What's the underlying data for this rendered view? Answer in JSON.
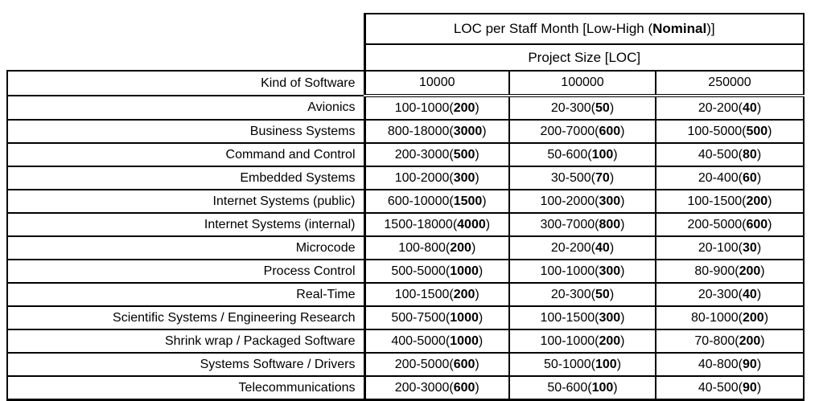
{
  "page": {
    "background_color": "#ffffff",
    "text_color": "#000000",
    "border_color": "#000000"
  },
  "table": {
    "title": {
      "prefix": "LOC per Staff Month [Low-High (",
      "bold": "Nominal",
      "suffix": ")]"
    },
    "subheader": "Project Size [LOC]",
    "corner_label": "Kind of Software",
    "size_columns": [
      "10000",
      "100000",
      "250000"
    ],
    "rows": [
      {
        "label": "Avionics",
        "cells": [
          {
            "range": "100-1000",
            "nominal": "200"
          },
          {
            "range": "20-300",
            "nominal": "50"
          },
          {
            "range": "20-200",
            "nominal": "40"
          }
        ]
      },
      {
        "label": "Business Systems",
        "cells": [
          {
            "range": "800-18000",
            "nominal": "3000"
          },
          {
            "range": "200-7000",
            "nominal": "600"
          },
          {
            "range": "100-5000",
            "nominal": "500"
          }
        ]
      },
      {
        "label": "Command and Control",
        "cells": [
          {
            "range": "200-3000",
            "nominal": "500"
          },
          {
            "range": "50-600",
            "nominal": "100"
          },
          {
            "range": "40-500",
            "nominal": "80"
          }
        ]
      },
      {
        "label": "Embedded Systems",
        "cells": [
          {
            "range": "100-2000",
            "nominal": "300"
          },
          {
            "range": "30-500",
            "nominal": "70"
          },
          {
            "range": "20-400",
            "nominal": "60"
          }
        ]
      },
      {
        "label": "Internet Systems (public)",
        "cells": [
          {
            "range": "600-10000",
            "nominal": "1500"
          },
          {
            "range": "100-2000",
            "nominal": "300"
          },
          {
            "range": "100-1500",
            "nominal": "200"
          }
        ]
      },
      {
        "label": "Internet Systems (internal)",
        "cells": [
          {
            "range": "1500-18000",
            "nominal": "4000"
          },
          {
            "range": "300-7000",
            "nominal": "800"
          },
          {
            "range": "200-5000",
            "nominal": "600"
          }
        ]
      },
      {
        "label": "Microcode",
        "cells": [
          {
            "range": "100-800",
            "nominal": "200"
          },
          {
            "range": "20-200",
            "nominal": "40"
          },
          {
            "range": "20-100",
            "nominal": "30"
          }
        ]
      },
      {
        "label": "Process Control",
        "cells": [
          {
            "range": "500-5000",
            "nominal": "1000"
          },
          {
            "range": "100-1000",
            "nominal": "300"
          },
          {
            "range": "80-900",
            "nominal": "200"
          }
        ]
      },
      {
        "label": "Real-Time",
        "cells": [
          {
            "range": "100-1500",
            "nominal": "200"
          },
          {
            "range": "20-300",
            "nominal": "50"
          },
          {
            "range": "20-300",
            "nominal": "40"
          }
        ]
      },
      {
        "label": "Scientific Systems / Engineering Research",
        "cells": [
          {
            "range": "500-7500",
            "nominal": "1000"
          },
          {
            "range": "100-1500",
            "nominal": "300"
          },
          {
            "range": "80-1000",
            "nominal": "200"
          }
        ]
      },
      {
        "label": "Shrink wrap / Packaged Software",
        "cells": [
          {
            "range": "400-5000",
            "nominal": "1000"
          },
          {
            "range": "100-1000",
            "nominal": "200"
          },
          {
            "range": "70-800",
            "nominal": "200"
          }
        ]
      },
      {
        "label": "Systems Software / Drivers",
        "cells": [
          {
            "range": "200-5000",
            "nominal": "600"
          },
          {
            "range": "50-1000",
            "nominal": "100"
          },
          {
            "range": "40-800",
            "nominal": "90"
          }
        ]
      },
      {
        "label": "Telecommunications",
        "cells": [
          {
            "range": "200-3000",
            "nominal": "600"
          },
          {
            "range": "50-600",
            "nominal": "100"
          },
          {
            "range": "40-500",
            "nominal": "90"
          }
        ]
      }
    ]
  },
  "chart_data": {
    "type": "table",
    "title": "LOC per Staff Month [Low-High (Nominal)]",
    "column_group_label": "Project Size [LOC]",
    "row_header": "Kind of Software",
    "columns": [
      "10000",
      "100000",
      "250000"
    ],
    "rows": [
      [
        "Avionics",
        "100-1000(200)",
        "20-300(50)",
        "20-200(40)"
      ],
      [
        "Business Systems",
        "800-18000(3000)",
        "200-7000(600)",
        "100-5000(500)"
      ],
      [
        "Command and Control",
        "200-3000(500)",
        "50-600(100)",
        "40-500(80)"
      ],
      [
        "Embedded Systems",
        "100-2000(300)",
        "30-500(70)",
        "20-400(60)"
      ],
      [
        "Internet Systems (public)",
        "600-10000(1500)",
        "100-2000(300)",
        "100-1500(200)"
      ],
      [
        "Internet Systems (internal)",
        "1500-18000(4000)",
        "300-7000(800)",
        "200-5000(600)"
      ],
      [
        "Microcode",
        "100-800(200)",
        "20-200(40)",
        "20-100(30)"
      ],
      [
        "Process Control",
        "500-5000(1000)",
        "100-1000(300)",
        "80-900(200)"
      ],
      [
        "Real-Time",
        "100-1500(200)",
        "20-300(50)",
        "20-300(40)"
      ],
      [
        "Scientific Systems / Engineering Research",
        "500-7500(1000)",
        "100-1500(300)",
        "80-1000(200)"
      ],
      [
        "Shrink wrap / Packaged Software",
        "400-5000(1000)",
        "100-1000(200)",
        "70-800(200)"
      ],
      [
        "Systems Software / Drivers",
        "200-5000(600)",
        "50-1000(100)",
        "40-800(90)"
      ],
      [
        "Telecommunications",
        "200-3000(600)",
        "50-600(100)",
        "40-500(90)"
      ]
    ]
  }
}
